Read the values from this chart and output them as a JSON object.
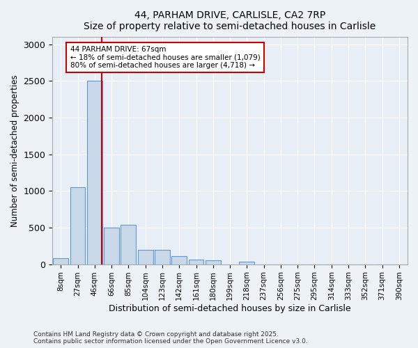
{
  "title1": "44, PARHAM DRIVE, CARLISLE, CA2 7RP",
  "title2": "Size of property relative to semi-detached houses in Carlisle",
  "xlabel": "Distribution of semi-detached houses by size in Carlisle",
  "ylabel": "Number of semi-detached properties",
  "bin_labels": [
    "8sqm",
    "27sqm",
    "46sqm",
    "66sqm",
    "85sqm",
    "104sqm",
    "123sqm",
    "142sqm",
    "161sqm",
    "180sqm",
    "199sqm",
    "218sqm",
    "237sqm",
    "256sqm",
    "275sqm",
    "295sqm",
    "314sqm",
    "333sqm",
    "352sqm",
    "371sqm",
    "390sqm"
  ],
  "bar_heights": [
    80,
    1050,
    2500,
    500,
    540,
    200,
    200,
    110,
    60,
    50,
    0,
    30,
    0,
    0,
    0,
    0,
    0,
    0,
    0,
    0,
    0
  ],
  "bar_color": "#c8d8e8",
  "bar_edge_color": "#5b9bd5",
  "red_line_bar_index": 2,
  "annotation_line1": "44 PARHAM DRIVE: 67sqm",
  "annotation_line2": "← 18% of semi-detached houses are smaller (1,079)",
  "annotation_line3": "80% of semi-detached houses are larger (4,718) →",
  "annotation_box_color": "#ffffff",
  "annotation_box_edge_color": "#cc0000",
  "ylim": [
    0,
    3100
  ],
  "yticks": [
    0,
    500,
    1000,
    1500,
    2000,
    2500,
    3000
  ],
  "footer1": "Contains HM Land Registry data © Crown copyright and database right 2025.",
  "footer2": "Contains public sector information licensed under the Open Government Licence v3.0.",
  "bg_color": "#edf2f7",
  "plot_bg_color": "#e8eef5"
}
